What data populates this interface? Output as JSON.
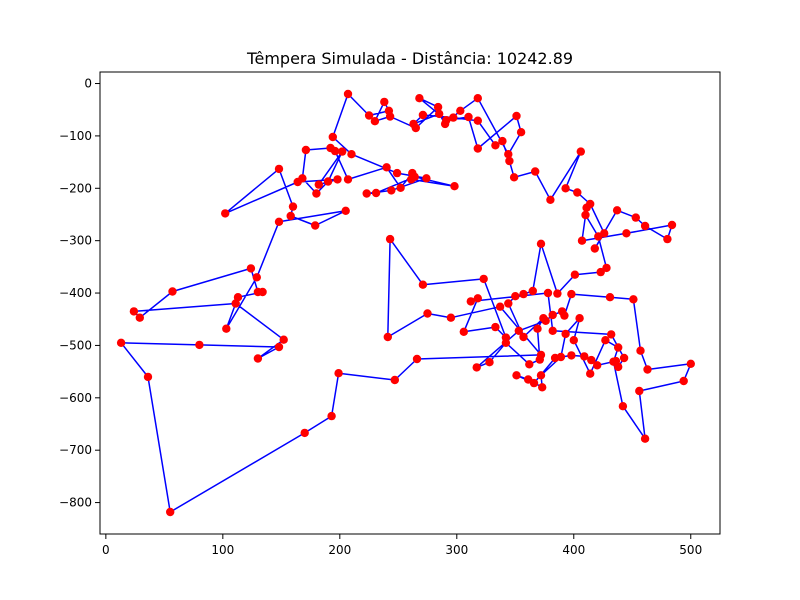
{
  "chart_data": {
    "type": "line",
    "title": "Têmpera Simulada - Distância: 10242.89",
    "xlabel": "",
    "ylabel": "",
    "xlim": [
      -5,
      525
    ],
    "ylim": [
      -860,
      22
    ],
    "xticks": [
      0,
      100,
      200,
      300,
      400,
      500
    ],
    "yticks": [
      0,
      -100,
      -200,
      -300,
      -400,
      -500,
      -600,
      -700,
      -800
    ],
    "grid": false,
    "line_color": "#0000ff",
    "marker_color": "#ff0000",
    "closed": true,
    "series": [
      {
        "x": [
          207,
          225,
          242,
          238,
          230,
          243,
          265,
          284,
          268,
          291,
          310,
          318,
          351,
          355,
          344,
          318,
          303,
          290,
          285,
          263,
          271,
          297,
          318,
          333,
          339,
          345,
          349,
          367,
          380,
          406,
          393,
          403,
          414,
          426,
          418,
          437,
          453,
          461,
          480,
          484,
          445,
          407,
          411,
          410,
          421,
          428,
          423,
          401,
          386,
          372,
          365,
          357,
          350,
          344,
          357,
          374,
          369,
          371,
          362,
          342,
          328,
          317,
          353,
          376,
          382,
          390,
          392,
          398,
          431,
          451,
          457,
          463,
          500,
          494,
          456,
          461,
          442,
          434,
          438,
          427,
          414,
          400,
          405,
          393,
          389,
          372,
          373,
          361,
          351,
          366,
          384,
          398,
          409,
          415,
          420,
          436,
          438,
          443,
          432,
          382,
          378,
          312,
          318,
          306,
          333,
          342,
          323,
          271,
          243,
          241,
          275,
          295,
          337,
          372,
          266,
          247,
          199,
          193,
          170,
          55,
          36,
          13,
          80,
          148,
          130,
          152,
          111,
          24,
          29,
          57,
          124,
          130,
          134,
          113,
          103,
          129,
          148,
          205,
          179,
          158,
          160,
          148,
          102,
          164,
          198,
          182,
          202,
          190,
          180,
          168,
          171,
          192,
          196,
          207,
          240,
          252,
          262,
          261,
          298,
          264,
          231,
          223,
          244,
          274,
          249,
          210,
          194
        ],
        "y": [
          -20,
          -61,
          -52,
          -35,
          -72,
          -63,
          -85,
          -45,
          -28,
          -70,
          -64,
          -124,
          -62,
          -93,
          -135,
          -28,
          -52,
          -77,
          -58,
          -77,
          -60,
          -65,
          -71,
          -118,
          -110,
          -148,
          -179,
          -168,
          -222,
          -130,
          -200,
          -208,
          -230,
          -286,
          -315,
          -242,
          -256,
          -272,
          -297,
          -270,
          -286,
          -300,
          -237,
          -251,
          -292,
          -352,
          -360,
          -365,
          -401,
          -306,
          -396,
          -402,
          -406,
          -420,
          -484,
          -448,
          -468,
          -527,
          -536,
          -495,
          -532,
          -542,
          -472,
          -453,
          -442,
          -435,
          -443,
          -402,
          -408,
          -412,
          -510,
          -546,
          -535,
          -568,
          -587,
          -678,
          -616,
          -531,
          -504,
          -490,
          -554,
          -490,
          -448,
          -478,
          -522,
          -557,
          -580,
          -565,
          -557,
          -572,
          -524,
          -519,
          -521,
          -528,
          -538,
          -530,
          -541,
          -524,
          -479,
          -472,
          -400,
          -416,
          -410,
          -474,
          -465,
          -485,
          -373,
          -384,
          -297,
          -484,
          -439,
          -447,
          -426,
          -518,
          -526,
          -566,
          -553,
          -635,
          -667,
          -818,
          -560,
          -495,
          -499,
          -503,
          -525,
          -489,
          -420,
          -435,
          -447,
          -397,
          -353,
          -398,
          -398,
          -408,
          -468,
          -370,
          -264,
          -243,
          -271,
          -253,
          -235,
          -163,
          -248,
          -188,
          -183,
          -193,
          -130,
          -187,
          -210,
          -181,
          -127,
          -123,
          -129,
          -183,
          -160,
          -199,
          -171,
          -183,
          -196,
          -178,
          -209,
          -210,
          -204,
          -181,
          -171,
          -135,
          -102
        ]
      }
    ]
  }
}
